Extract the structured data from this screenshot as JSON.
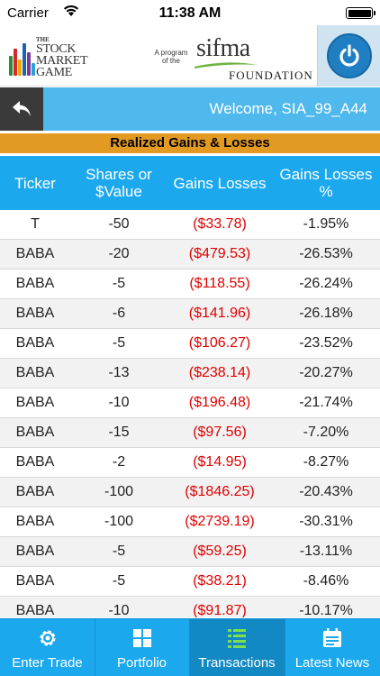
{
  "status_bar": {
    "carrier": "Carrier",
    "time": "11:38 AM"
  },
  "header": {
    "smg_logo": {
      "the": "THE",
      "line1": "STOCK",
      "line2": "MARKET",
      "line3": "GAME"
    },
    "sifma_logo": {
      "program_line1": "A program",
      "program_line2": "of the",
      "word": "sifma",
      "foundation": "FOUNDATION"
    }
  },
  "welcome": {
    "text": "Welcome, SIA_99_A44"
  },
  "section": {
    "title": "Realized Gains & Losses"
  },
  "table": {
    "headers": {
      "ticker": "Ticker",
      "shares_line1": "Shares or",
      "shares_line2": "$Value",
      "gains": "Gains Losses",
      "pct_line1": "Gains Losses",
      "pct_line2": "%"
    },
    "rows": [
      {
        "ticker": "T",
        "shares": "-50",
        "gains": "($33.78)",
        "pct": "-1.95%"
      },
      {
        "ticker": "BABA",
        "shares": "-20",
        "gains": "($479.53)",
        "pct": "-26.53%"
      },
      {
        "ticker": "BABA",
        "shares": "-5",
        "gains": "($118.55)",
        "pct": "-26.24%"
      },
      {
        "ticker": "BABA",
        "shares": "-6",
        "gains": "($141.96)",
        "pct": "-26.18%"
      },
      {
        "ticker": "BABA",
        "shares": "-5",
        "gains": "($106.27)",
        "pct": "-23.52%"
      },
      {
        "ticker": "BABA",
        "shares": "-13",
        "gains": "($238.14)",
        "pct": "-20.27%"
      },
      {
        "ticker": "BABA",
        "shares": "-10",
        "gains": "($196.48)",
        "pct": "-21.74%"
      },
      {
        "ticker": "BABA",
        "shares": "-15",
        "gains": "($97.56)",
        "pct": "-7.20%"
      },
      {
        "ticker": "BABA",
        "shares": "-2",
        "gains": "($14.95)",
        "pct": "-8.27%"
      },
      {
        "ticker": "BABA",
        "shares": "-100",
        "gains": "($1846.25)",
        "pct": "-20.43%"
      },
      {
        "ticker": "BABA",
        "shares": "-100",
        "gains": "($2739.19)",
        "pct": "-30.31%"
      },
      {
        "ticker": "BABA",
        "shares": "-5",
        "gains": "($59.25)",
        "pct": "-13.11%"
      },
      {
        "ticker": "BABA",
        "shares": "-5",
        "gains": "($38.21)",
        "pct": "-8.46%"
      },
      {
        "ticker": "BABA",
        "shares": "-10",
        "gains": "($91.87)",
        "pct": "-10.17%"
      }
    ]
  },
  "tabs": [
    {
      "label": "Enter Trade",
      "icon": "gear-icon",
      "active": false
    },
    {
      "label": "Portfolio",
      "icon": "grid-icon",
      "active": false
    },
    {
      "label": "Transactions",
      "icon": "list-icon",
      "active": true
    },
    {
      "label": "Latest News",
      "icon": "calendar-icon",
      "active": false
    }
  ],
  "colors": {
    "header_blue": "#1ca8ec",
    "welcome_blue": "#4fb8ec",
    "section_orange": "#e39a22",
    "loss_red": "#e00000"
  }
}
